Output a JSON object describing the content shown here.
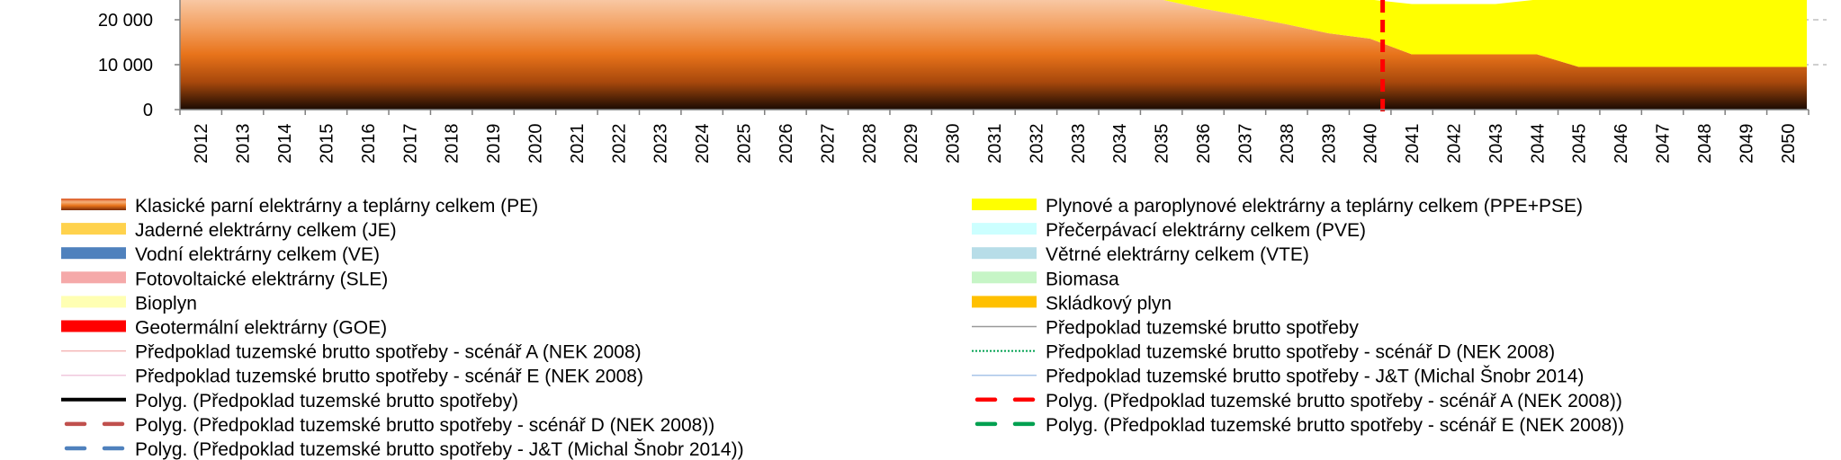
{
  "chart_data": {
    "type": "area",
    "x": [
      2012,
      2013,
      2014,
      2015,
      2016,
      2017,
      2018,
      2019,
      2020,
      2021,
      2022,
      2023,
      2024,
      2025,
      2026,
      2027,
      2028,
      2029,
      2030,
      2031,
      2032,
      2033,
      2034,
      2035,
      2036,
      2037,
      2038,
      2039,
      2040,
      2041,
      2042,
      2043,
      2044,
      2045,
      2046,
      2047,
      2048,
      2049,
      2050
    ],
    "x_tick_labels": [
      "2012",
      "2013",
      "2014",
      "2015",
      "2016",
      "2017",
      "2018",
      "2019",
      "2020",
      "2021",
      "2022",
      "2023",
      "2024",
      "2025",
      "2026",
      "2027",
      "2028",
      "2029",
      "2030",
      "2031",
      "2032",
      "2033",
      "2034",
      "2035",
      "2036",
      "2037",
      "2038",
      "2039",
      "2040",
      "2041",
      "2042",
      "2043",
      "2044",
      "2045",
      "2046",
      "2047",
      "2048",
      "2049",
      "2050"
    ],
    "y_visible_range": [
      0,
      24500
    ],
    "y_tick_labels": [
      "0",
      "10 000",
      "20 000"
    ],
    "y_tick_values": [
      0,
      10000,
      20000
    ],
    "grid": "horizontal dashed",
    "vertical_marker": {
      "x": 2040.3,
      "color": "#ff0000",
      "style": "dashed"
    },
    "series": [
      {
        "name": "Klasické parní elektrárny a teplárny celkem (PE)",
        "color": "#e8731a",
        "values": [
          24500,
          24500,
          24500,
          24500,
          24500,
          24500,
          24500,
          24500,
          24500,
          24500,
          24500,
          24500,
          24500,
          24500,
          24500,
          24500,
          24500,
          24500,
          24500,
          24500,
          24500,
          24500,
          24500,
          24500,
          22500,
          20800,
          19000,
          17000,
          15800,
          12300,
          12300,
          12300,
          12300,
          9500,
          9500,
          9500,
          9500,
          9500,
          9500
        ]
      },
      {
        "name": "Plynové a paroplynové elektrárny a teplárny celkem (PPE+PSE)",
        "color": "#ffff00",
        "values": [
          0,
          0,
          0,
          0,
          0,
          0,
          0,
          0,
          0,
          0,
          0,
          0,
          0,
          0,
          0,
          0,
          0,
          0,
          0,
          0,
          0,
          0,
          0,
          0,
          2000,
          3700,
          5500,
          7500,
          8700,
          11200,
          11200,
          11200,
          12200,
          15000,
          15000,
          15000,
          15000,
          15000,
          15000
        ]
      }
    ],
    "legend": [
      {
        "label": "Klasické parní elektrárny a teplárny celkem (PE)",
        "kind": "gradient",
        "color": "#e8731a"
      },
      {
        "label": "Plynové a paroplynové elektrárny a teplárny celkem (PPE+PSE)",
        "kind": "swatch",
        "color": "#ffff00"
      },
      {
        "label": "Jaderné elektrárny celkem (JE)",
        "kind": "swatch",
        "color": "#ffd24d"
      },
      {
        "label": "Přečerpávací elektrárny celkem (PVE)",
        "kind": "swatch",
        "color": "#ccffff"
      },
      {
        "label": "Vodní elektrárny celkem (VE)",
        "kind": "swatch",
        "color": "#4f81bd"
      },
      {
        "label": "Větrné elektrárny celkem (VTE)",
        "kind": "swatch",
        "color": "#b7dde8"
      },
      {
        "label": "Fotovoltaické elektrárny (SLE)",
        "kind": "swatch",
        "color": "#f5a9a9"
      },
      {
        "label": "Biomasa",
        "kind": "swatch",
        "color": "#c6f5c6"
      },
      {
        "label": "Bioplyn",
        "kind": "swatch",
        "color": "#ffffb3"
      },
      {
        "label": "Skládkový plyn",
        "kind": "swatch",
        "color": "#ffc000"
      },
      {
        "label": "Geotermální elektrárny (GOE)",
        "kind": "swatch",
        "color": "#ff0000"
      },
      {
        "label": "Předpoklad tuzemské brutto spotřeby",
        "kind": "thinline",
        "color": "#999999"
      },
      {
        "label": "Předpoklad tuzemské brutto spotřeby - scénář A (NEK 2008)",
        "kind": "thinline",
        "color": "#f4b6b6"
      },
      {
        "label": "Předpoklad tuzemské brutto spotřeby - scénář D (NEK 2008)",
        "kind": "dotted",
        "color": "#00a050"
      },
      {
        "label": "Předpoklad tuzemské brutto spotřeby - scénář E (NEK 2008)",
        "kind": "thinline",
        "color": "#f0c8dc"
      },
      {
        "label": "Předpoklad tuzemské brutto spotřeby - J&T (Michal Šnobr 2014)",
        "kind": "thinline",
        "color": "#a8c4e8"
      },
      {
        "label": "Polyg. (Předpoklad tuzemské brutto spotřeby)",
        "kind": "solid",
        "color": "#000000"
      },
      {
        "label": "Polyg. (Předpoklad tuzemské brutto spotřeby - scénář A (NEK 2008))",
        "kind": "dashed",
        "color": "#ff0000"
      },
      {
        "label": "Polyg. (Předpoklad tuzemské brutto spotřeby - scénář D (NEK 2008))",
        "kind": "dashed",
        "color": "#c0504d"
      },
      {
        "label": "Polyg. (Předpoklad tuzemské brutto spotřeby - scénář E (NEK 2008))",
        "kind": "dashed",
        "color": "#00a050"
      },
      {
        "label": "Polyg. (Předpoklad tuzemské brutto spotřeby - J&T (Michal Šnobr 2014))",
        "kind": "dashed",
        "color": "#4f81bd"
      }
    ],
    "legend_placement": "bottom"
  }
}
